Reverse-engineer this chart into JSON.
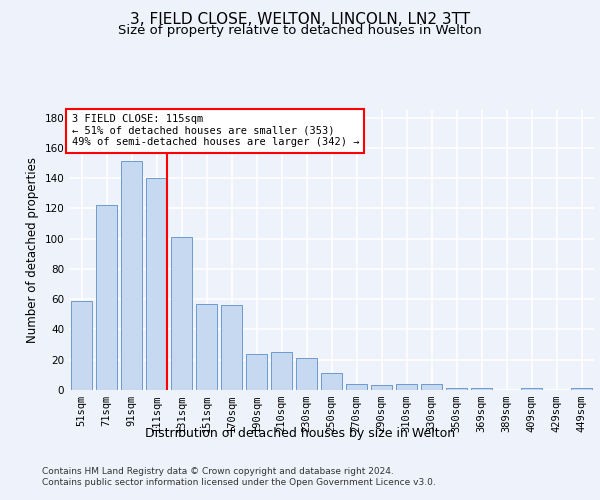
{
  "title_line1": "3, FIELD CLOSE, WELTON, LINCOLN, LN2 3TT",
  "title_line2": "Size of property relative to detached houses in Welton",
  "xlabel": "Distribution of detached houses by size in Welton",
  "ylabel": "Number of detached properties",
  "bar_color": "#c6d9f0",
  "bar_edge_color": "#5b8fc9",
  "vline_color": "red",
  "vline_x_index": 3,
  "categories": [
    "51sqm",
    "71sqm",
    "91sqm",
    "111sqm",
    "131sqm",
    "151sqm",
    "170sqm",
    "190sqm",
    "210sqm",
    "230sqm",
    "250sqm",
    "270sqm",
    "290sqm",
    "310sqm",
    "330sqm",
    "350sqm",
    "369sqm",
    "389sqm",
    "409sqm",
    "429sqm",
    "449sqm"
  ],
  "values": [
    59,
    122,
    151,
    140,
    101,
    57,
    56,
    24,
    25,
    21,
    11,
    4,
    3,
    4,
    4,
    1,
    1,
    0,
    1,
    0,
    1
  ],
  "ylim": [
    0,
    185
  ],
  "yticks": [
    0,
    20,
    40,
    60,
    80,
    100,
    120,
    140,
    160,
    180
  ],
  "annotation_text": "3 FIELD CLOSE: 115sqm\n← 51% of detached houses are smaller (353)\n49% of semi-detached houses are larger (342) →",
  "annotation_box_facecolor": "white",
  "annotation_box_edgecolor": "red",
  "footer_text": "Contains HM Land Registry data © Crown copyright and database right 2024.\nContains public sector information licensed under the Open Government Licence v3.0.",
  "bg_color": "#eef2fb",
  "plot_bg_color": "#eef2fb",
  "grid_color": "white",
  "title_fontsize": 11,
  "subtitle_fontsize": 9.5,
  "ylabel_fontsize": 8.5,
  "xlabel_fontsize": 9,
  "tick_fontsize": 7.5,
  "annotation_fontsize": 7.5,
  "footer_fontsize": 6.5
}
